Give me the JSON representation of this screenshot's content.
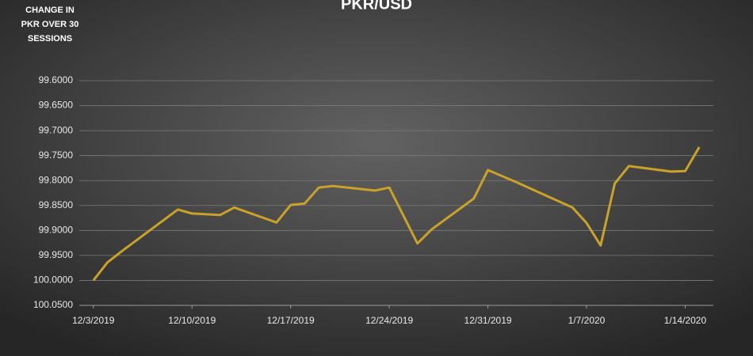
{
  "chart_data": {
    "type": "line",
    "title": "PKR/USD",
    "annotation": [
      "CHANGE IN",
      "PKR OVER 30",
      "SESSIONS"
    ],
    "x": [
      "12/3/2019",
      "12/4/2019",
      "12/5/2019",
      "12/9/2019",
      "12/10/2019",
      "12/12/2019",
      "12/13/2019",
      "12/16/2019",
      "12/17/2019",
      "12/18/2019",
      "12/19/2019",
      "12/20/2019",
      "12/23/2019",
      "12/24/2019",
      "12/26/2019",
      "12/27/2019",
      "12/30/2019",
      "12/31/2019",
      "1/2/2020",
      "1/6/2020",
      "1/7/2020",
      "1/8/2020",
      "1/9/2020",
      "1/10/2020",
      "1/13/2020",
      "1/14/2020",
      "1/15/2020"
    ],
    "series": [
      {
        "name": "PKR/USD",
        "color": "#c9a227",
        "values": [
          100.0,
          99.964,
          99.942,
          99.858,
          99.866,
          99.869,
          99.854,
          99.884,
          99.849,
          99.846,
          99.814,
          99.811,
          99.82,
          99.814,
          99.926,
          99.898,
          99.836,
          99.779,
          99.803,
          99.854,
          99.885,
          99.93,
          99.806,
          99.771,
          99.782,
          99.781,
          99.733
        ]
      }
    ],
    "xlim": [
      "12/2/2019",
      "1/16/2020"
    ],
    "xticks": [
      "12/3/2019",
      "12/10/2019",
      "12/17/2019",
      "12/24/2019",
      "12/31/2019",
      "1/7/2020",
      "1/14/2020"
    ],
    "ylim": [
      99.6,
      100.05
    ],
    "y_inverted": true,
    "yticks": [
      {
        "value": 99.6,
        "label": "99.6000"
      },
      {
        "value": 99.65,
        "label": "99.6500"
      },
      {
        "value": 99.7,
        "label": "99.7000"
      },
      {
        "value": 99.75,
        "label": "99.7500"
      },
      {
        "value": 99.8,
        "label": "99.8000"
      },
      {
        "value": 99.85,
        "label": "99.8500"
      },
      {
        "value": 99.9,
        "label": "99.9000"
      },
      {
        "value": 99.95,
        "label": "99.9500"
      },
      {
        "value": 100,
        "label": "100.0000"
      },
      {
        "value": 100.05,
        "label": "100.0500"
      }
    ],
    "grid": true
  }
}
